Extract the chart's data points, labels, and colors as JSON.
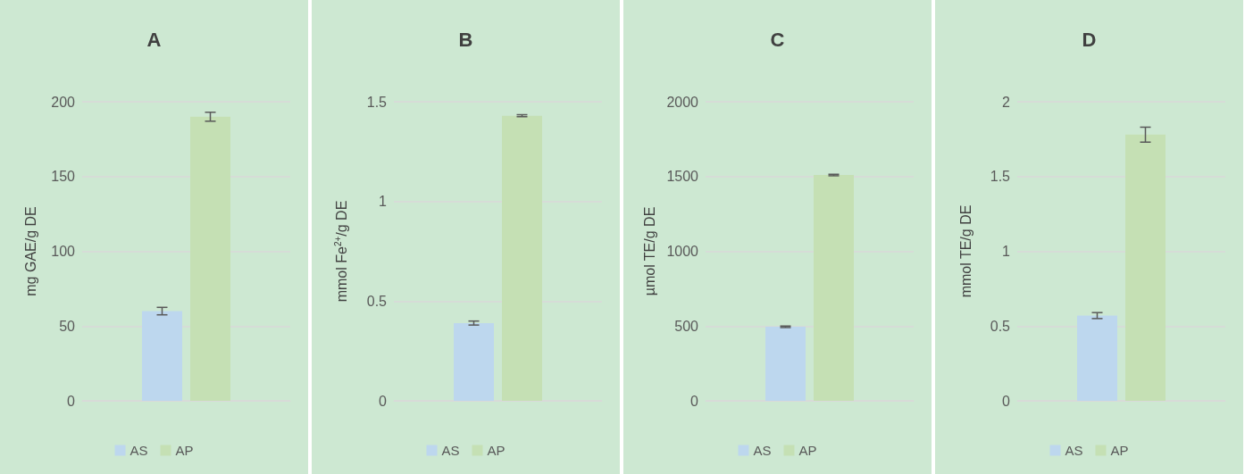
{
  "chart_data": [
    {
      "type": "bar",
      "title": "A",
      "ylabel": "mg GAE/g DE",
      "categories": [
        null
      ],
      "tick_labels": "y",
      "grid": "y",
      "legend": "bottom",
      "ylim": [
        0,
        200
      ],
      "yticks": [
        0,
        50,
        100,
        150,
        200
      ],
      "series": [
        {
          "name": "AS",
          "color": "#bdd7ee",
          "values": [
            60
          ],
          "errors": [
            2.5
          ]
        },
        {
          "name": "AP",
          "color": "#c5e0b4",
          "values": [
            190
          ],
          "errors": [
            3
          ]
        }
      ]
    },
    {
      "type": "bar",
      "title": "B",
      "ylabel": "mmol Fe$^{2+}$/g DE",
      "categories": [
        null
      ],
      "tick_labels": "y",
      "grid": "y",
      "legend": "bottom",
      "ylim": [
        0,
        1.5
      ],
      "yticks": [
        0,
        0.5,
        1,
        1.5
      ],
      "series": [
        {
          "name": "AS",
          "color": "#bdd7ee",
          "values": [
            0.39
          ],
          "errors": [
            0.01
          ]
        },
        {
          "name": "AP",
          "color": "#c5e0b4",
          "values": [
            1.43
          ],
          "errors": [
            0.005
          ]
        }
      ]
    },
    {
      "type": "bar",
      "title": "C",
      "ylabel": "µmol TE/g DE",
      "categories": [
        null
      ],
      "tick_labels": "y",
      "grid": "y",
      "legend": "bottom",
      "ylim": [
        0,
        2000
      ],
      "yticks": [
        0,
        500,
        1000,
        1500,
        2000
      ],
      "series": [
        {
          "name": "AS",
          "color": "#bdd7ee",
          "values": [
            495
          ],
          "errors": [
            5
          ]
        },
        {
          "name": "AP",
          "color": "#c5e0b4",
          "values": [
            1510
          ],
          "errors": [
            5
          ]
        }
      ]
    },
    {
      "type": "bar",
      "title": "D",
      "ylabel": "mmol TE/g DE",
      "categories": [
        null
      ],
      "tick_labels": "y",
      "grid": "y",
      "legend": "bottom",
      "ylim": [
        0,
        2
      ],
      "yticks": [
        0,
        0.5,
        1,
        1.5,
        2
      ],
      "series": [
        {
          "name": "AS",
          "color": "#bdd7ee",
          "values": [
            0.57
          ],
          "errors": [
            0.02
          ]
        },
        {
          "name": "AP",
          "color": "#c5e0b4",
          "values": [
            1.78
          ],
          "errors": [
            0.05
          ]
        }
      ]
    }
  ]
}
